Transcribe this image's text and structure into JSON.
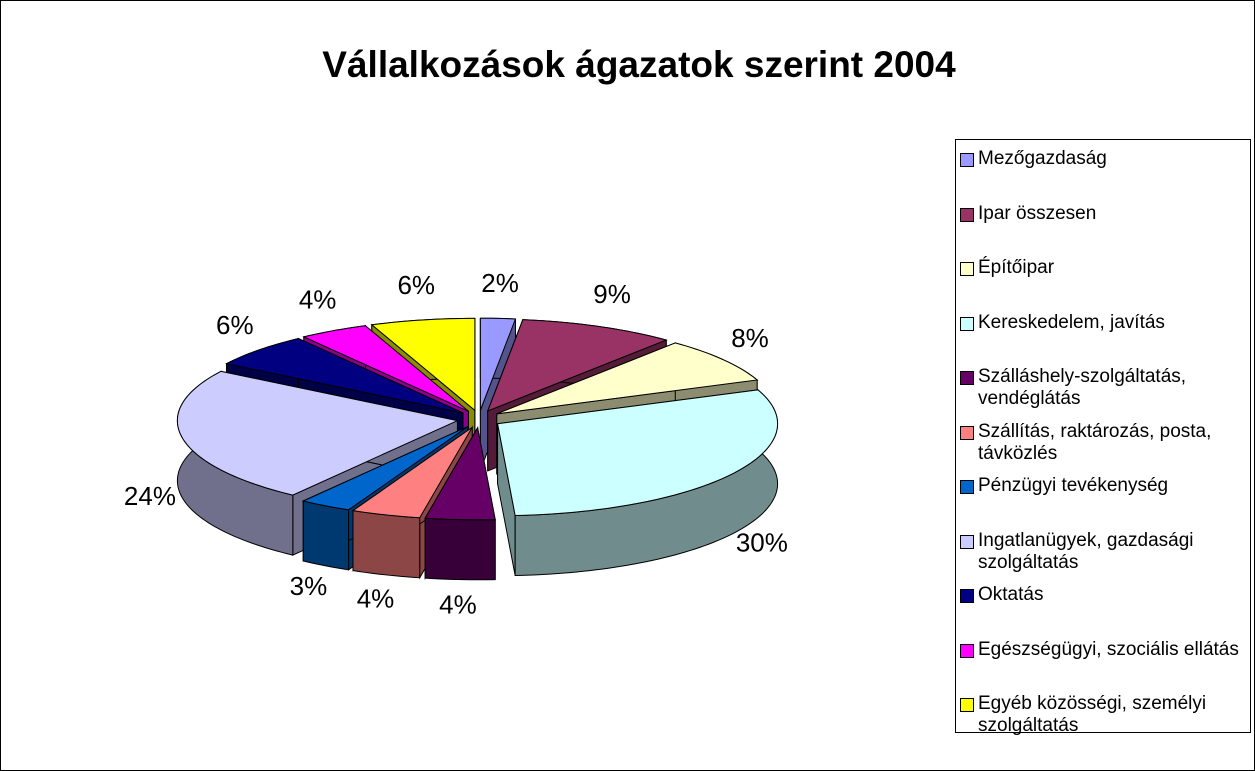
{
  "chart_data": {
    "type": "pie",
    "title": "Vállalkozások ágazatok szerint 2004",
    "categories": [
      "Mezőgazdaság",
      "Ipar összesen",
      "Építőipar",
      "Kereskedelem, javítás",
      "Szálláshely-szolgáltatás, vendéglátás",
      "Szállítás, raktározás, posta, távközlés",
      "Pénzügyi tevékenység",
      "Ingatlanügyek, gazdasági szolgáltatás",
      "Oktatás",
      "Egészségügyi, szociális ellátás",
      "Egyéb közösségi, személyi szolgáltatás"
    ],
    "values": [
      2,
      9,
      8,
      30,
      4,
      4,
      3,
      24,
      6,
      4,
      6
    ],
    "value_labels": [
      "2%",
      "9%",
      "8%",
      "30%",
      "4%",
      "4%",
      "3%",
      "24%",
      "6%",
      "4%",
      "6%"
    ],
    "colors": [
      "#9999ff",
      "#993366",
      "#ffffcc",
      "#ccffff",
      "#660066",
      "#ff8080",
      "#0066cc",
      "#ccccff",
      "#000080",
      "#ff00ff",
      "#ffff00"
    ],
    "legend": "right"
  }
}
